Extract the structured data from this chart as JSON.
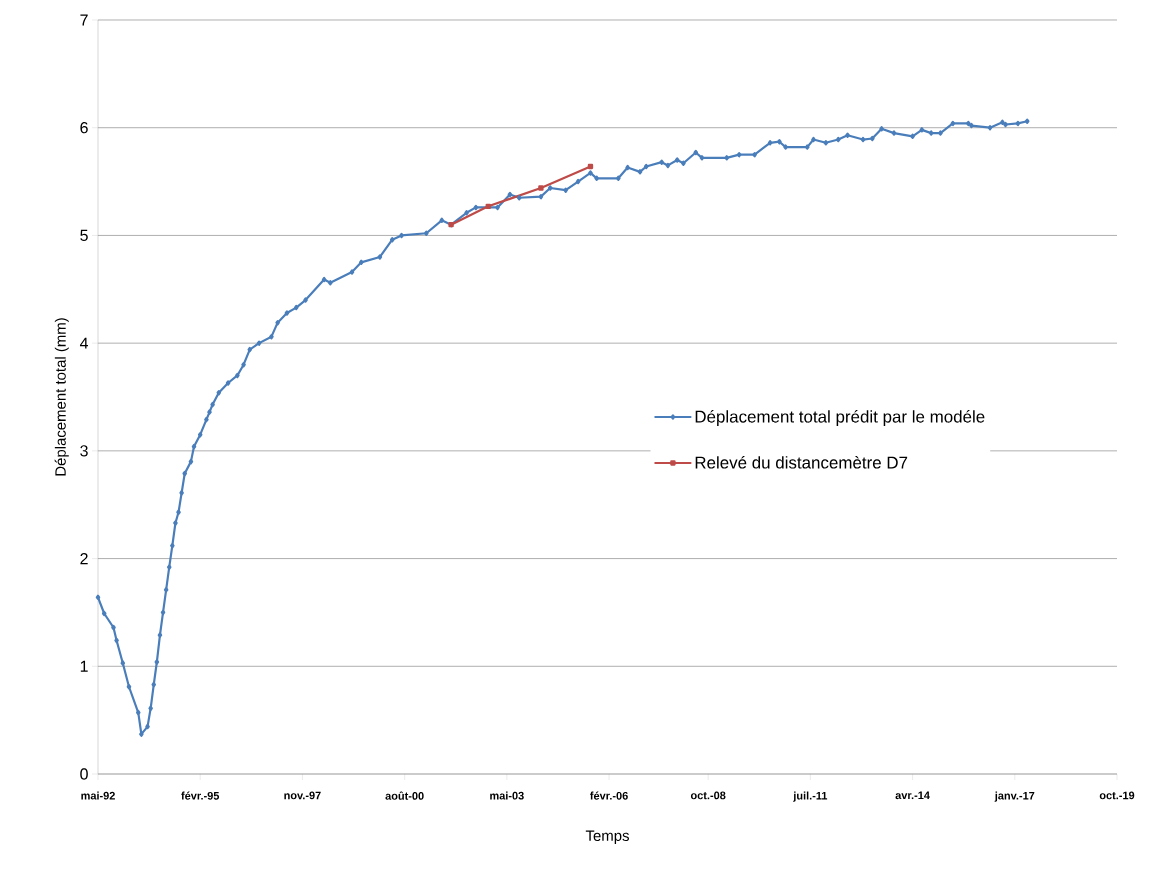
{
  "chart_data": {
    "type": "line",
    "xlabel": "Temps",
    "ylabel": "Déplacement total (mm)",
    "xlim": [
      "1992-05",
      "2019-10"
    ],
    "ylim": [
      0,
      7
    ],
    "xticks": [
      {
        "value": "1992-05",
        "label": "mai-92"
      },
      {
        "value": "1995-02",
        "label": "févr.-95"
      },
      {
        "value": "1997-11",
        "label": "nov.-97"
      },
      {
        "value": "2000-08",
        "label": "août-00"
      },
      {
        "value": "2003-05",
        "label": "mai-03"
      },
      {
        "value": "2006-02",
        "label": "févr.-06"
      },
      {
        "value": "2008-10",
        "label": "oct.-08"
      },
      {
        "value": "2011-07",
        "label": "juil.-11"
      },
      {
        "value": "2014-04",
        "label": "avr.-14"
      },
      {
        "value": "2017-01",
        "label": "janv.-17"
      },
      {
        "value": "2019-10",
        "label": "oct.-19"
      }
    ],
    "yticks": [
      0,
      1,
      2,
      3,
      4,
      5,
      6,
      7
    ],
    "grid": "y",
    "legend": "right",
    "series": [
      {
        "name": "Déplacement total prédit par le modéle",
        "color": "#4a7ebb",
        "marker": "diamond",
        "x": [
          "1992-05",
          "1992-07",
          "1992-10",
          "1992-11",
          "1993-01",
          "1993-03",
          "1993-06",
          "1993-07",
          "1993-09",
          "1993-10",
          "1993-11",
          "1993-12",
          "1994-01",
          "1994-02",
          "1994-03",
          "1994-04",
          "1994-05",
          "1994-06",
          "1994-07",
          "1994-08",
          "1994-09",
          "1994-11",
          "1994-12",
          "1995-02",
          "1995-04",
          "1995-05",
          "1995-06",
          "1995-08",
          "1995-11",
          "1996-02",
          "1996-04",
          "1996-06",
          "1996-09",
          "1997-01",
          "1997-03",
          "1997-06",
          "1997-09",
          "1997-12",
          "1998-06",
          "1998-08",
          "1999-03",
          "1999-06",
          "1999-12",
          "2000-04",
          "2000-07",
          "2001-03",
          "2001-08",
          "2001-11",
          "2002-04",
          "2002-07",
          "2003-02",
          "2003-06",
          "2003-09",
          "2004-04",
          "2004-07",
          "2004-12",
          "2005-04",
          "2005-08",
          "2005-10",
          "2006-05",
          "2006-08",
          "2006-12",
          "2007-02",
          "2007-07",
          "2007-09",
          "2007-12",
          "2008-02",
          "2008-06",
          "2008-08",
          "2009-04",
          "2009-08",
          "2010-01",
          "2010-06",
          "2010-09",
          "2010-11",
          "2011-06",
          "2011-08",
          "2011-12",
          "2012-04",
          "2012-07",
          "2012-12",
          "2013-03",
          "2013-06",
          "2013-10",
          "2014-04",
          "2014-07",
          "2014-10",
          "2015-01",
          "2015-05",
          "2015-10",
          "2015-11",
          "2016-05",
          "2016-09",
          "2016-10",
          "2017-02",
          "2017-05"
        ],
        "values": [
          1.64,
          1.49,
          1.36,
          1.24,
          1.03,
          0.81,
          0.57,
          0.37,
          0.44,
          0.61,
          0.83,
          1.04,
          1.29,
          1.5,
          1.71,
          1.92,
          2.12,
          2.33,
          2.43,
          2.61,
          2.79,
          2.9,
          3.04,
          3.15,
          3.29,
          3.36,
          3.43,
          3.54,
          3.63,
          3.7,
          3.8,
          3.94,
          4.0,
          4.06,
          4.19,
          4.28,
          4.33,
          4.4,
          4.59,
          4.56,
          4.66,
          4.75,
          4.8,
          4.96,
          5.0,
          5.02,
          5.14,
          5.1,
          5.21,
          5.26,
          5.26,
          5.38,
          5.35,
          5.36,
          5.44,
          5.42,
          5.5,
          5.58,
          5.53,
          5.53,
          5.63,
          5.59,
          5.64,
          5.68,
          5.65,
          5.7,
          5.67,
          5.77,
          5.72,
          5.72,
          5.75,
          5.75,
          5.86,
          5.87,
          5.82,
          5.82,
          5.89,
          5.86,
          5.89,
          5.93,
          5.89,
          5.9,
          5.99,
          5.95,
          5.92,
          5.98,
          5.95,
          5.95,
          6.04,
          6.04,
          6.02,
          6.0,
          6.05,
          6.03,
          6.04,
          6.06
        ]
      },
      {
        "name": "Relevé du distancemètre D7",
        "color": "#be4b48",
        "marker": "square",
        "x": [
          "2001-11",
          "2002-11",
          "2004-04",
          "2005-08"
        ],
        "values": [
          5.1,
          5.27,
          5.44,
          5.64
        ]
      }
    ]
  }
}
